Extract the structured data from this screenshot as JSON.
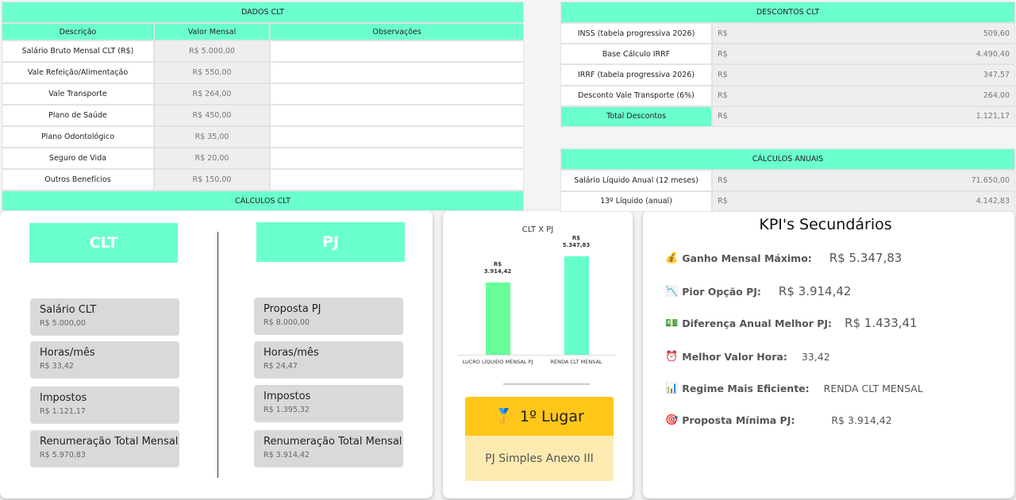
{
  "dados_clt": {
    "title": "DADOS CLT",
    "headers": [
      "Descrição",
      "Valor Mensal",
      "Observações"
    ],
    "rows": [
      [
        "Salário Bruto Mensal CLT (R$)",
        "R$ 5.000,00"
      ],
      [
        "Vale Refeição/Alimentação",
        "R$ 550,00"
      ],
      [
        "Vale Transporte",
        "R$ 264,00"
      ],
      [
        "Plano de Saúde",
        "R$ 450,00"
      ],
      [
        "Plano Odontológico",
        "R$ 35,00"
      ],
      [
        "Seguro de Vida",
        "R$ 20,00"
      ],
      [
        "Outros Benefícios",
        "R$ 150,00"
      ]
    ],
    "footer": "CÁLCULOS CLT"
  },
  "descontos_clt": {
    "title": "DESCONTOS CLT",
    "rows": [
      [
        "INSS (tabela progressiva 2026)",
        "R$",
        "509,60"
      ],
      [
        "Base Cálculo IRRF",
        "R$",
        "4.490,40"
      ],
      [
        "IRRF (tabela progressiva 2026)",
        "R$",
        "347,57"
      ],
      [
        "Desconto Vale Transporte (6%)",
        "R$",
        "264,00"
      ],
      [
        "Total Descontos",
        "R$",
        "1.121,17"
      ]
    ]
  },
  "calculos_anuais": {
    "title": "CÁLCULOS ANUAIS",
    "rows": [
      [
        "Salário Líquido Anual (12 meses)",
        "R$",
        "71.650,00"
      ],
      [
        "13º Líquido (anual)",
        "R$",
        "4.142,83"
      ]
    ]
  },
  "comparison": {
    "clt": {
      "title": "CLT",
      "items": [
        {
          "label": "Salário CLT",
          "value": "R$ 5.000,00"
        },
        {
          "label": "Horas/mês",
          "value": "R$ 33,42"
        },
        {
          "label": "Impostos",
          "value": "R$ 1.121,17"
        },
        {
          "label": "Renumeração Total Mensal",
          "value": "R$ 5.970,83"
        }
      ]
    },
    "pj": {
      "title": "PJ",
      "items": [
        {
          "label": "Proposta PJ",
          "value": "R$ 8.000,00"
        },
        {
          "label": "Horas/mês",
          "value": "R$ 24,47"
        },
        {
          "label": "Impostos",
          "value": "R$ 1.395,32"
        },
        {
          "label": "Renumeração Total Mensal",
          "value": "R$ 3.914,42"
        }
      ]
    }
  },
  "chart_data": {
    "type": "bar",
    "title": "CLT X PJ",
    "categories": [
      "LUCRO LÍQUIDO MENSAL PJ",
      "RENDA CLT MENSAL"
    ],
    "values": [
      3914.42,
      5347.83
    ],
    "value_labels": [
      "R$ 3.914,42",
      "R$ 5.347,83"
    ],
    "colors": [
      "#66ff99",
      "#66ffcc"
    ],
    "ylim": [
      0,
      6000
    ]
  },
  "ranking": {
    "place": "1º Lugar",
    "winner": "PJ Simples Anexo III"
  },
  "kpis": {
    "title": "KPI's Secundários",
    "items": [
      {
        "label": "Ganho Mensal Máximo:",
        "value": "R$ 5.347,83"
      },
      {
        "label": "Pior Opção PJ:",
        "value": "R$ 3.914,42"
      },
      {
        "label": "Diferença Anual Melhor PJ:",
        "value": "R$ 1.433,41"
      },
      {
        "label": "Melhor Valor Hora:",
        "value": "33,42"
      },
      {
        "label": "Regime Mais Eficiente:",
        "value": "RENDA CLT MENSAL"
      },
      {
        "label": "Proposta Mínima PJ:",
        "value": "R$ 3.914,42"
      }
    ]
  }
}
